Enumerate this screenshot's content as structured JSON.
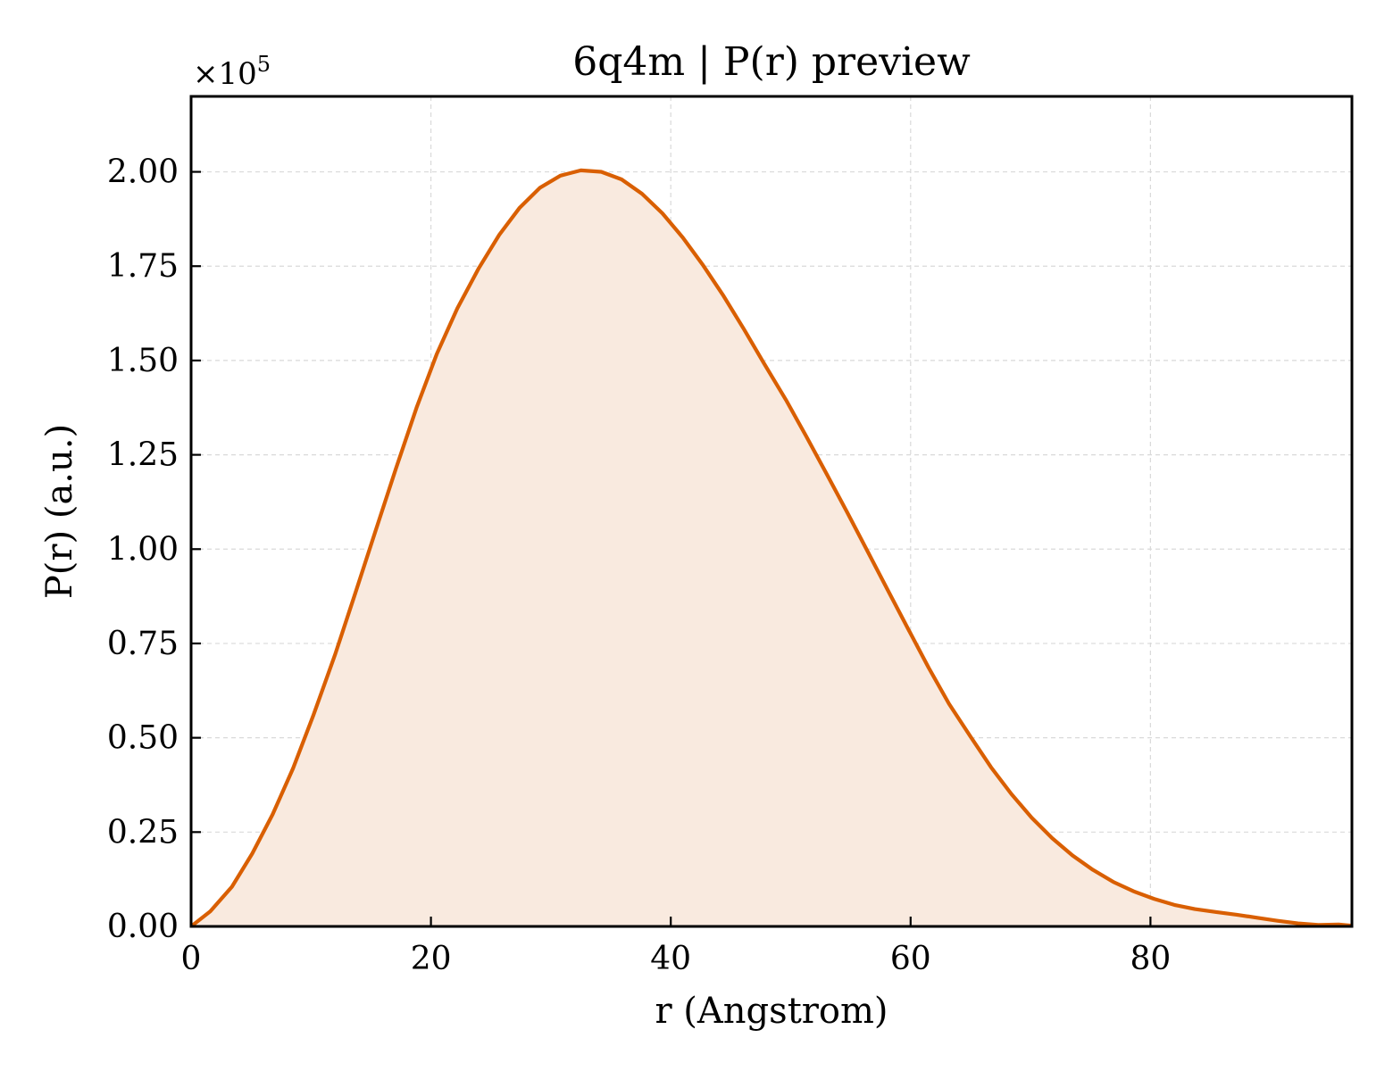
{
  "chart_data": {
    "type": "area",
    "title": "6q4m | P(r) preview",
    "xlabel": "r (Angstrom)",
    "ylabel": "P(r) (a.u.)",
    "y_multiplier": "×10",
    "y_multiplier_exp": "5",
    "xlim": [
      0,
      96.8
    ],
    "ylim": [
      0,
      2.2
    ],
    "x_ticks": [
      0,
      20,
      40,
      60,
      80
    ],
    "x_tick_labels": [
      "0",
      "20",
      "40",
      "60",
      "80"
    ],
    "y_ticks": [
      0,
      0.25,
      0.5,
      0.75,
      1.0,
      1.25,
      1.5,
      1.75,
      2.0
    ],
    "y_tick_labels": [
      "0.00",
      "0.25",
      "0.50",
      "0.75",
      "1.00",
      "1.25",
      "1.50",
      "1.75",
      "2.00"
    ],
    "grid": true,
    "line_color": "#d95f02",
    "fill_color": "#f9eadf",
    "series": [
      {
        "x": [
          0,
          1.6,
          3.4,
          5.1,
          6.8,
          8.5,
          10.2,
          12.0,
          13.7,
          15.4,
          17.1,
          18.8,
          20.5,
          22.2,
          24.0,
          25.7,
          27.4,
          29.1,
          30.8,
          32.5,
          34.2,
          35.9,
          37.6,
          39.3,
          41.0,
          42.7,
          44.4,
          46.1,
          47.8,
          49.6,
          51.3,
          53.0,
          54.7,
          56.4,
          58.1,
          59.8,
          61.5,
          63.2,
          65.0,
          66.7,
          68.4,
          70.1,
          71.8,
          73.5,
          75.2,
          76.9,
          78.6,
          80.3,
          82.0,
          83.7,
          85.5,
          87.2,
          88.9,
          90.6,
          92.3,
          94.0,
          95.7,
          96.8
        ],
        "y": [
          0,
          0.04,
          0.105,
          0.193,
          0.297,
          0.419,
          0.56,
          0.72,
          0.884,
          1.05,
          1.215,
          1.375,
          1.518,
          1.638,
          1.745,
          1.833,
          1.905,
          1.958,
          1.99,
          2.004,
          2.0,
          1.98,
          1.942,
          1.89,
          1.826,
          1.752,
          1.671,
          1.583,
          1.491,
          1.396,
          1.299,
          1.199,
          1.098,
          0.995,
          0.891,
          0.788,
          0.686,
          0.59,
          0.503,
          0.422,
          0.351,
          0.288,
          0.234,
          0.188,
          0.15,
          0.118,
          0.093,
          0.073,
          0.057,
          0.046,
          0.038,
          0.031,
          0.023,
          0.015,
          0.008,
          0.004,
          0.005,
          0.002
        ]
      }
    ]
  }
}
